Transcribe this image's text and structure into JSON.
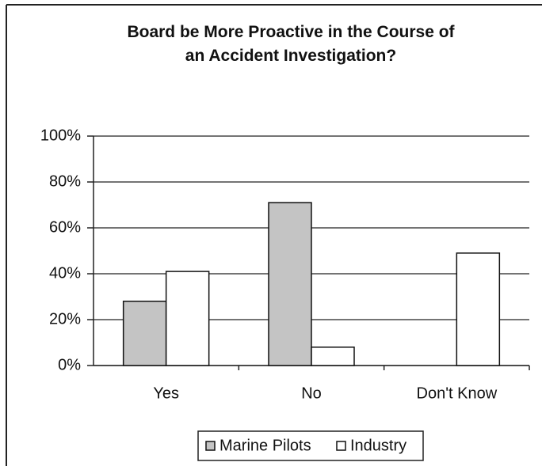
{
  "chart_data": {
    "type": "bar",
    "title": "Board be More Proactive in the Course of an Accident Investigation?",
    "categories": [
      "Yes",
      "No",
      "Don't Know"
    ],
    "series": [
      {
        "name": "Marine Pilots",
        "color": "#c4c4c4",
        "values": [
          28,
          71,
          0
        ]
      },
      {
        "name": "Industry",
        "color": "#ffffff",
        "values": [
          41,
          8,
          49
        ]
      }
    ],
    "ylim": [
      0,
      100
    ],
    "yticks": [
      {
        "value": 0,
        "label": "0%"
      },
      {
        "value": 20,
        "label": "20%"
      },
      {
        "value": 40,
        "label": "40%"
      },
      {
        "value": 60,
        "label": "60%"
      },
      {
        "value": 80,
        "label": "80%"
      },
      {
        "value": 100,
        "label": "100%"
      }
    ],
    "grid": true,
    "legend": "bottom"
  }
}
